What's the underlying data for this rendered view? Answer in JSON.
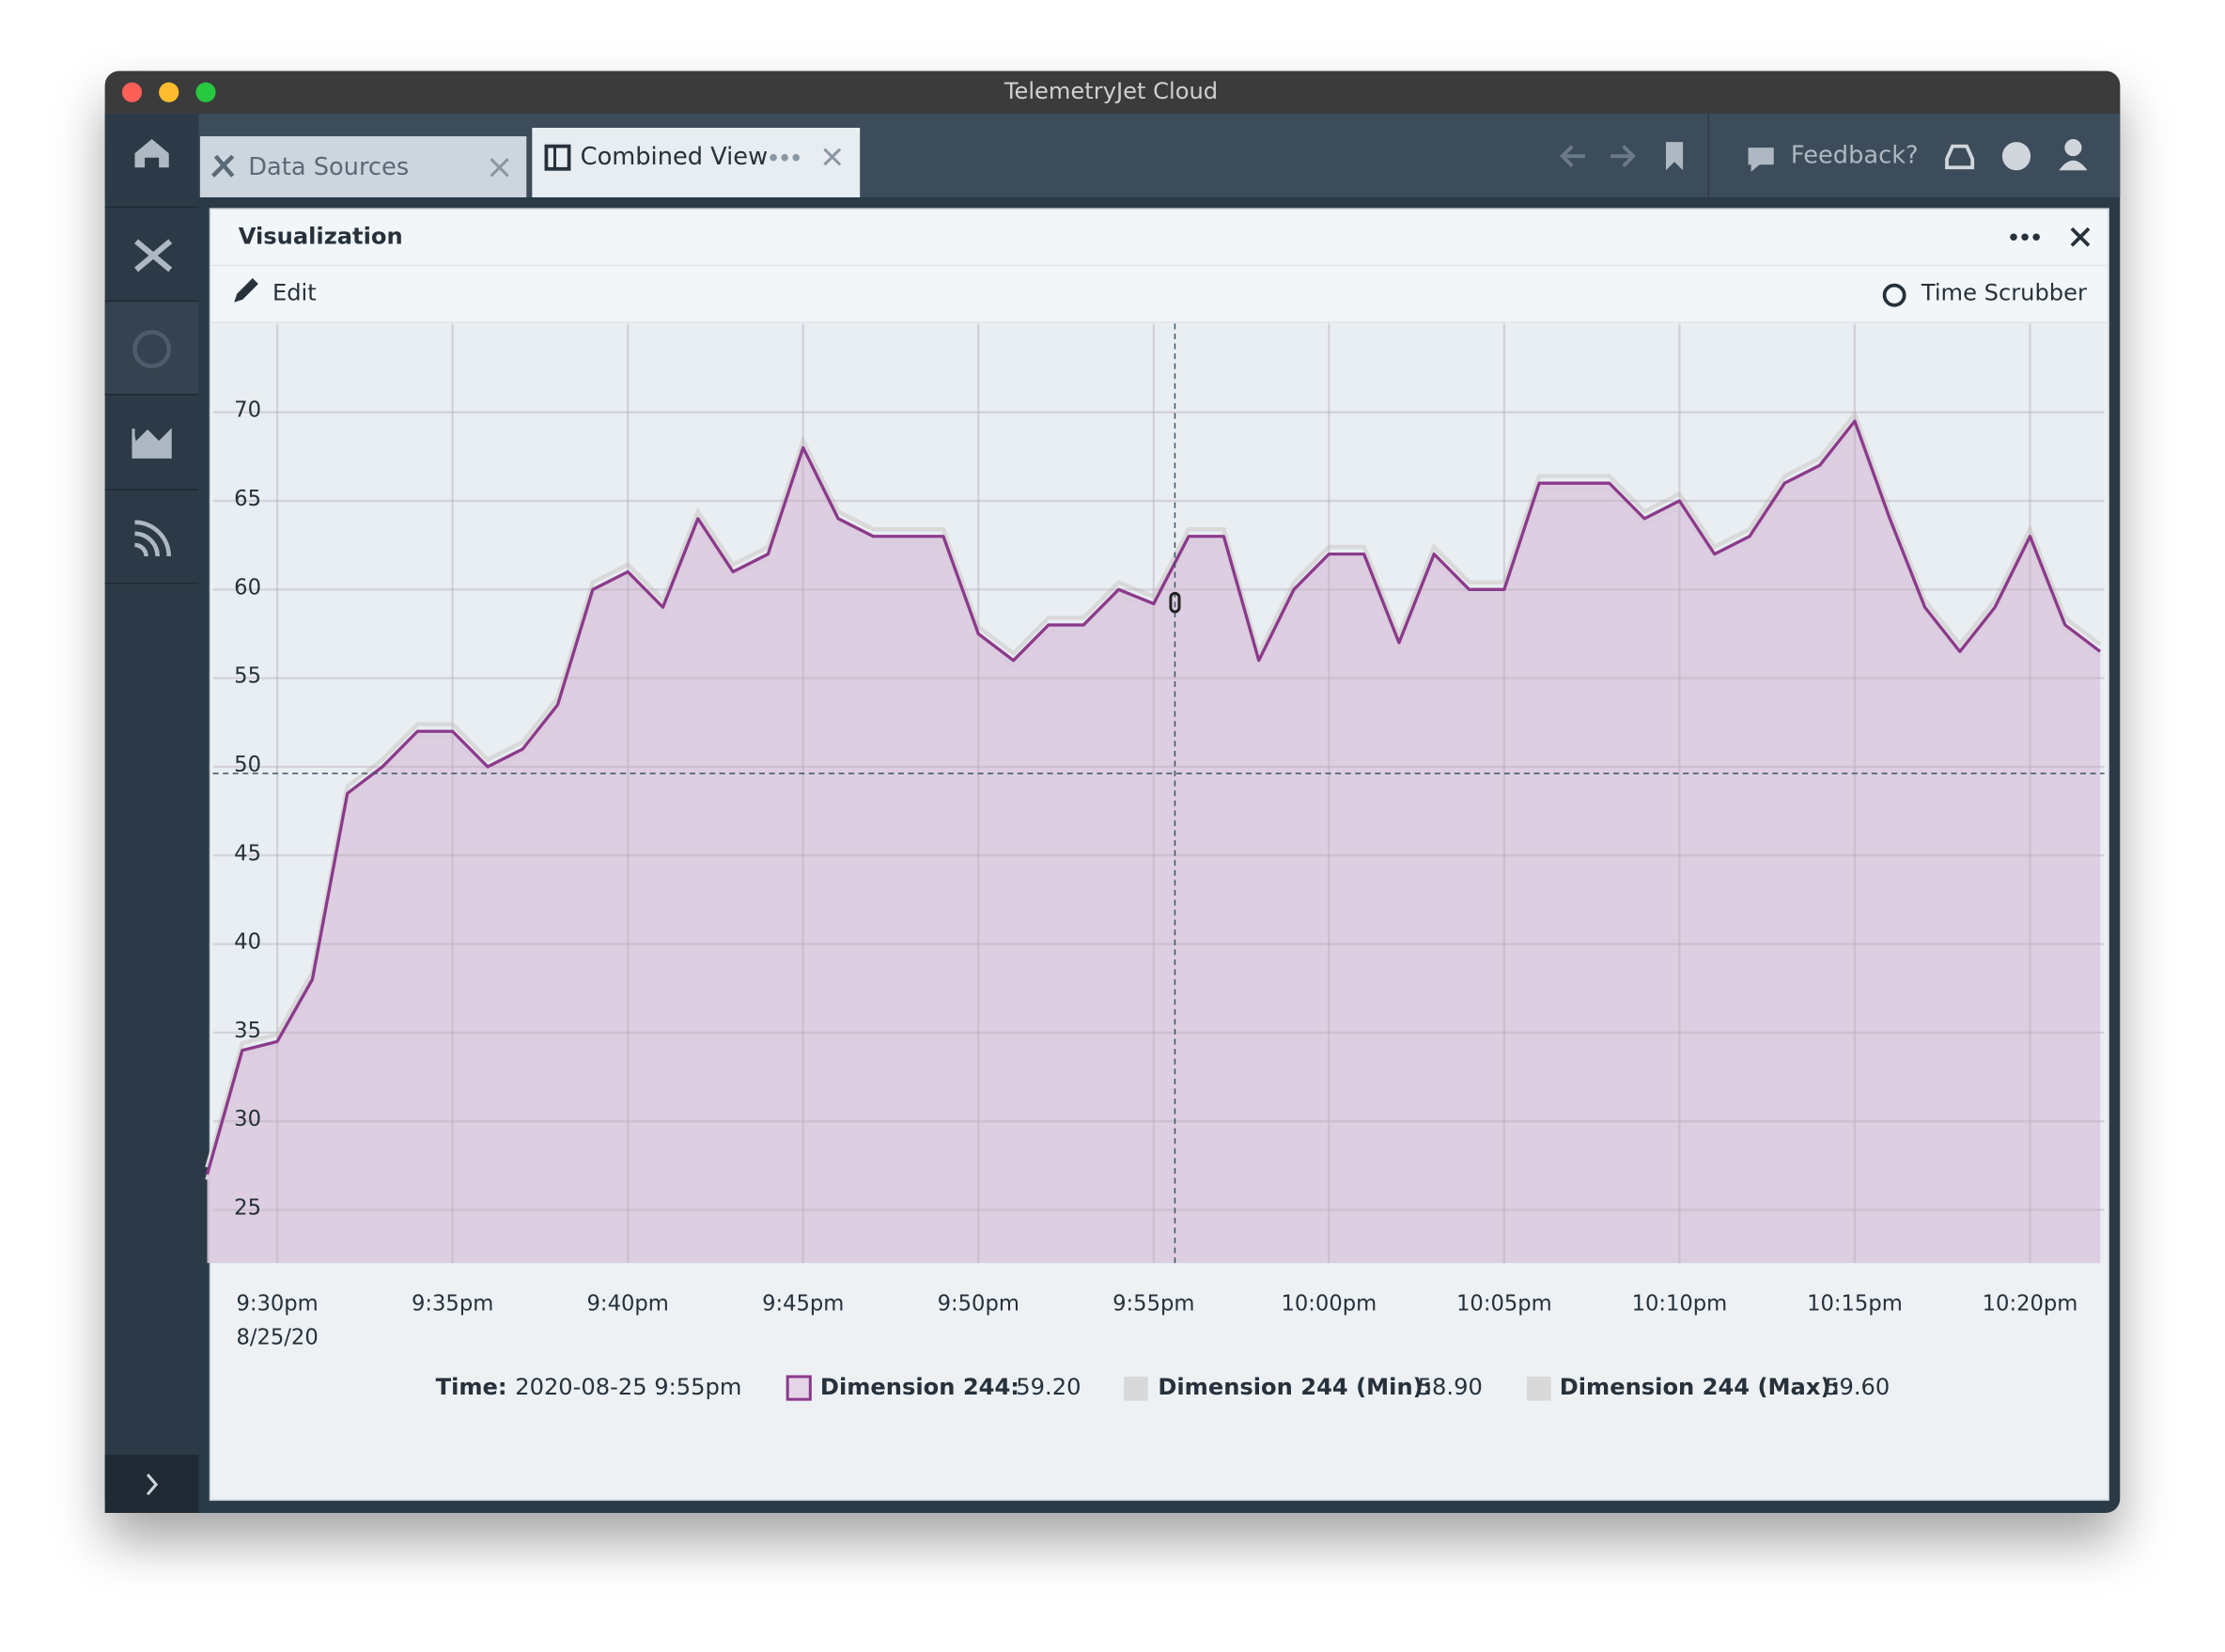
{
  "window_title": "TelemetryJet Cloud",
  "tabs": [
    {
      "label": "Data Sources"
    },
    {
      "label": "Combined View"
    }
  ],
  "toolbar": {
    "feedback": "Feedback?"
  },
  "panel": {
    "title": "Visualization",
    "edit": "Edit",
    "time_scrubber": "Time Scrubber"
  },
  "readout": {
    "time": {
      "label": "Time:",
      "value": "2020-08-25 9:55pm"
    },
    "items": [
      {
        "label": "Dimension 244:",
        "value": "59.20"
      },
      {
        "label": "Dimension 244 (Min):",
        "value": "58.90"
      },
      {
        "label": "Dimension 244 (Max):",
        "value": "59.60"
      }
    ]
  },
  "chart_data": {
    "type": "area",
    "x_date_label": "8/25/20",
    "x": [
      "2020-08-25 9:28pm",
      "2020-08-25 9:29pm",
      "2020-08-25 9:30pm",
      "2020-08-25 9:31pm",
      "2020-08-25 9:32pm",
      "2020-08-25 9:33pm",
      "2020-08-25 9:34pm",
      "2020-08-25 9:35pm",
      "2020-08-25 9:36pm",
      "2020-08-25 9:37pm",
      "2020-08-25 9:38pm",
      "2020-08-25 9:39pm",
      "2020-08-25 9:40pm",
      "2020-08-25 9:41pm",
      "2020-08-25 9:42pm",
      "2020-08-25 9:43pm",
      "2020-08-25 9:44pm",
      "2020-08-25 9:45pm",
      "2020-08-25 9:46pm",
      "2020-08-25 9:47pm",
      "2020-08-25 9:48pm",
      "2020-08-25 9:49pm",
      "2020-08-25 9:50pm",
      "2020-08-25 9:51pm",
      "2020-08-25 9:52pm",
      "2020-08-25 9:53pm",
      "2020-08-25 9:54pm",
      "2020-08-25 9:55pm",
      "2020-08-25 9:56pm",
      "2020-08-25 9:57pm",
      "2020-08-25 9:58pm",
      "2020-08-25 9:59pm",
      "2020-08-25 10:00pm",
      "2020-08-25 10:01pm",
      "2020-08-25 10:02pm",
      "2020-08-25 10:03pm",
      "2020-08-25 10:04pm",
      "2020-08-25 10:05pm",
      "2020-08-25 10:06pm",
      "2020-08-25 10:07pm",
      "2020-08-25 10:08pm",
      "2020-08-25 10:09pm",
      "2020-08-25 10:10pm",
      "2020-08-25 10:11pm",
      "2020-08-25 10:12pm",
      "2020-08-25 10:13pm",
      "2020-08-25 10:14pm",
      "2020-08-25 10:15pm",
      "2020-08-25 10:16pm",
      "2020-08-25 10:17pm",
      "2020-08-25 10:18pm",
      "2020-08-25 10:19pm",
      "2020-08-25 10:20pm",
      "2020-08-25 10:21pm",
      "2020-08-25 10:22pm"
    ],
    "series": [
      {
        "color": "#8b3a8b",
        "fill": "#dccadf",
        "values": [
          27,
          34,
          34.5,
          38,
          48.5,
          50,
          52,
          52,
          50,
          51,
          53.5,
          60,
          61,
          59,
          64,
          61,
          62,
          68,
          64,
          63,
          63,
          63,
          57.5,
          56,
          58,
          58,
          60,
          59.2,
          63,
          63,
          56,
          60,
          62,
          62,
          57,
          62,
          60,
          60,
          66,
          66,
          66,
          64,
          65,
          62,
          63,
          66,
          67,
          69.5,
          64,
          59,
          56.5,
          59,
          63,
          58,
          56.5
        ]
      },
      {
        "color": "#d9d9d9",
        "values": [
          26.7,
          33.7,
          34.2,
          37.7,
          48.2,
          49.7,
          51.7,
          51.7,
          49.7,
          50.7,
          53.2,
          59.7,
          60.7,
          58.7,
          63.7,
          60.7,
          61.7,
          67.7,
          63.7,
          62.7,
          62.7,
          62.7,
          57.2,
          55.7,
          57.7,
          57.7,
          59.7,
          58.9,
          62.7,
          62.7,
          55.7,
          59.7,
          61.7,
          61.7,
          56.7,
          61.7,
          59.7,
          59.7,
          65.7,
          65.7,
          65.7,
          63.7,
          64.7,
          61.7,
          62.7,
          65.7,
          66.7,
          69.2,
          63.7,
          58.7,
          56.2,
          58.7,
          62.7,
          57.7,
          56.2
        ]
      },
      {
        "color": "#d9d9d9",
        "values": [
          27.4,
          34.4,
          34.9,
          38.4,
          48.9,
          50.4,
          52.4,
          52.4,
          50.4,
          51.4,
          53.9,
          60.4,
          61.4,
          59.4,
          64.4,
          61.4,
          62.4,
          68.4,
          64.4,
          63.4,
          63.4,
          63.4,
          57.9,
          56.4,
          58.4,
          58.4,
          60.4,
          59.6,
          63.4,
          63.4,
          56.4,
          60.4,
          62.4,
          62.4,
          57.4,
          62.4,
          60.4,
          60.4,
          66.4,
          66.4,
          66.4,
          64.4,
          65.4,
          62.4,
          63.4,
          66.4,
          67.4,
          69.9,
          64.4,
          59.4,
          56.9,
          59.4,
          63.4,
          58.4,
          56.9
        ]
      }
    ],
    "xlim": [
      "2020-08-25 9:28pm",
      "2020-08-25 10:22pm"
    ],
    "xticks": [
      {
        "value": "2020-08-25 9:30pm",
        "label": "9:30pm"
      },
      {
        "value": "2020-08-25 9:35pm",
        "label": "9:35pm"
      },
      {
        "value": "2020-08-25 9:40pm",
        "label": "9:40pm"
      },
      {
        "value": "2020-08-25 9:45pm",
        "label": "9:45pm"
      },
      {
        "value": "2020-08-25 9:50pm",
        "label": "9:50pm"
      },
      {
        "value": "2020-08-25 9:55pm",
        "label": "9:55pm"
      },
      {
        "value": "2020-08-25 10:00pm",
        "label": "10:00pm"
      },
      {
        "value": "2020-08-25 10:05pm",
        "label": "10:05pm"
      },
      {
        "value": "2020-08-25 10:10pm",
        "label": "10:10pm"
      },
      {
        "value": "2020-08-25 10:15pm",
        "label": "10:15pm"
      },
      {
        "value": "2020-08-25 10:20pm",
        "label": "10:20pm"
      }
    ],
    "ylim": [
      22,
      75
    ],
    "yticks": [
      25,
      30,
      35,
      40,
      45,
      50,
      55,
      60,
      65,
      70
    ],
    "grid": true
  }
}
